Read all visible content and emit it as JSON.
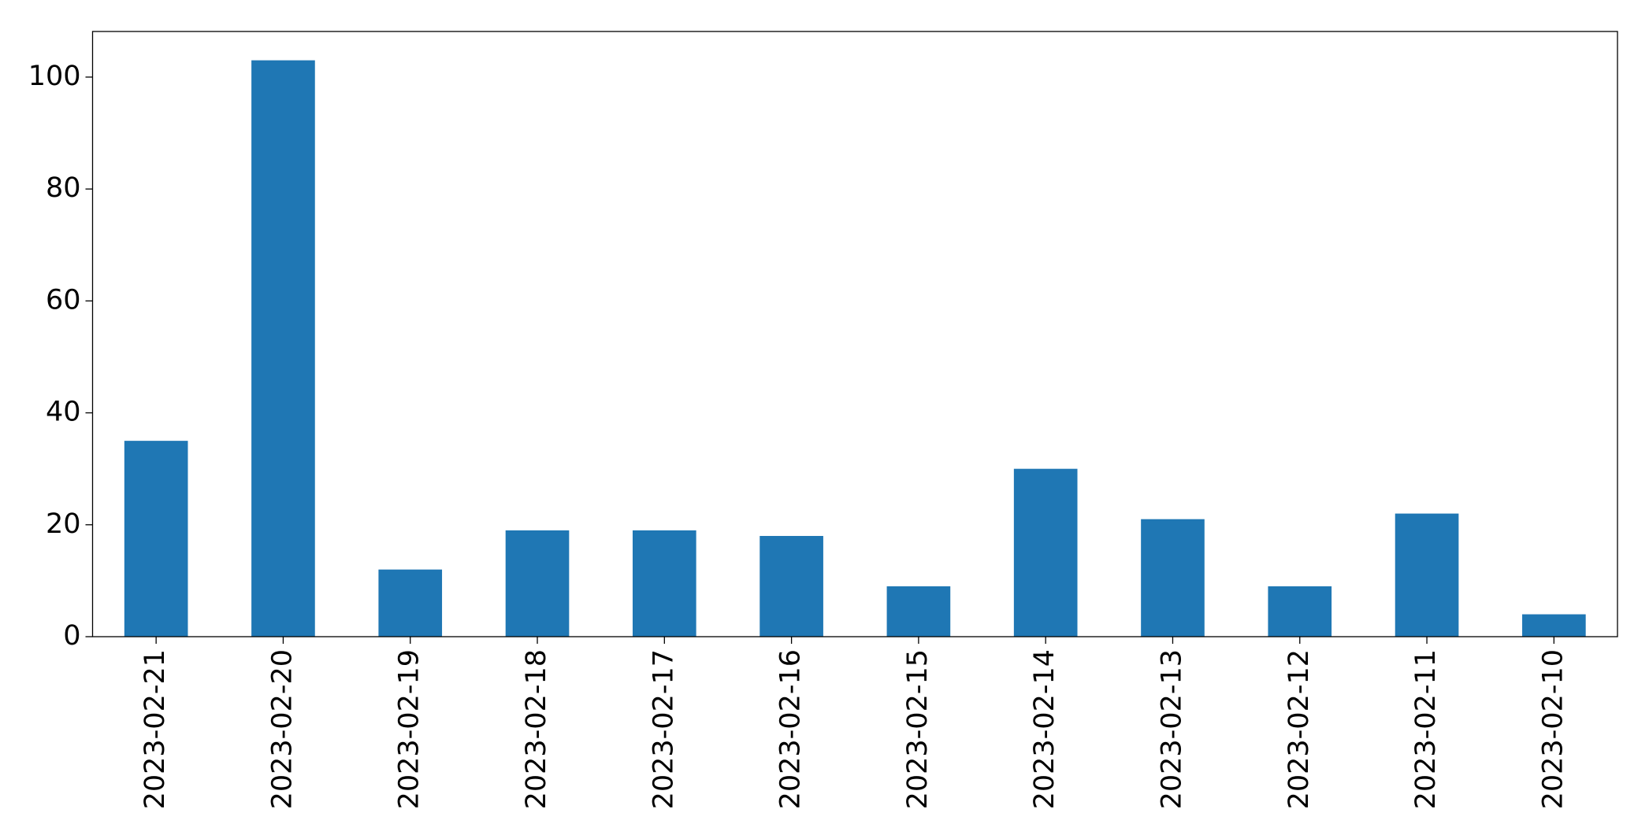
{
  "chart_data": {
    "type": "bar",
    "categories": [
      "2023-02-21",
      "2023-02-20",
      "2023-02-19",
      "2023-02-18",
      "2023-02-17",
      "2023-02-16",
      "2023-02-15",
      "2023-02-14",
      "2023-02-13",
      "2023-02-12",
      "2023-02-11",
      "2023-02-10"
    ],
    "values": [
      35,
      103,
      12,
      19,
      19,
      18,
      9,
      30,
      21,
      9,
      22,
      4
    ],
    "color": "#1f77b4",
    "ylim": [
      0,
      108.15
    ],
    "yticks": [
      0,
      20,
      40,
      60,
      80,
      100
    ],
    "grid": false
  }
}
